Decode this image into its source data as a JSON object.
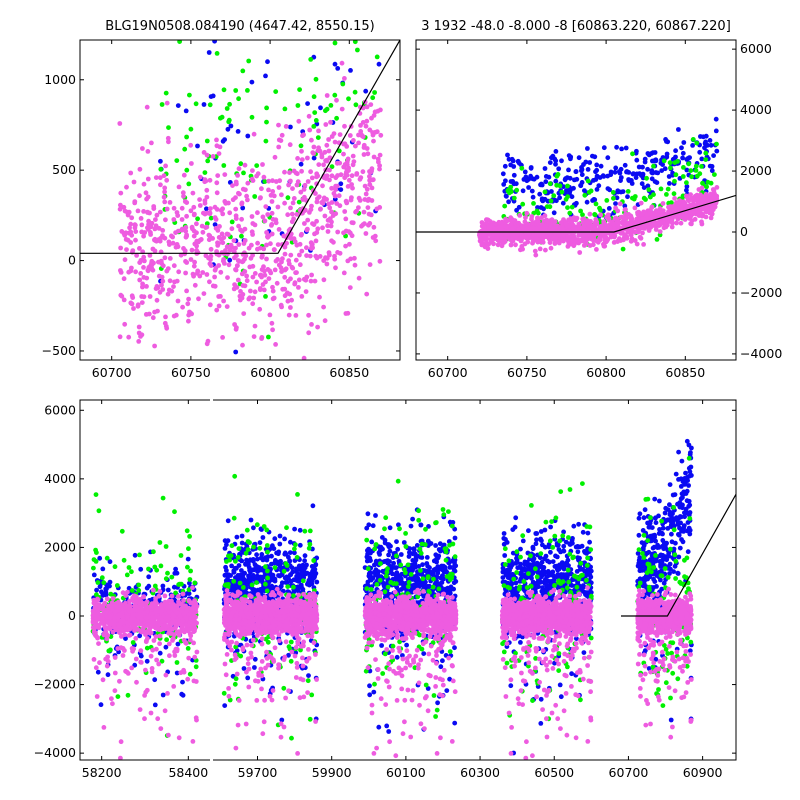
{
  "chart_data": [
    {
      "type": "scatter",
      "title": "BLG19N0508.084190 (4647.42, 8550.15)",
      "xlabel": "",
      "ylabel": "",
      "xlim": [
        60680,
        60882
      ],
      "ylim": [
        -550,
        1220
      ],
      "xticks": [
        60700,
        60750,
        60800,
        60850
      ],
      "yticks": [
        -500,
        0,
        500,
        1000
      ],
      "yaxis_side": "left",
      "grid": false,
      "series": [
        {
          "color": "#0a0af2",
          "n_points": 90,
          "x_range": [
            60730,
            60870
          ],
          "center": 700,
          "sigma": 500,
          "trend": 1.5
        },
        {
          "color": "#00f000",
          "n_points": 150,
          "x_range": [
            60730,
            60870
          ],
          "center": 600,
          "sigma": 420,
          "trend": 1.5
        },
        {
          "color": "#ee5ce0",
          "n_points": 950,
          "x_range": [
            60705,
            60870
          ],
          "center": 50,
          "sigma": 260,
          "trend": 1.0
        }
      ],
      "model_line": {
        "color": "#000000",
        "points": [
          [
            60680,
            40
          ],
          [
            60805,
            40
          ],
          [
            60882,
            1220
          ]
        ]
      }
    },
    {
      "type": "scatter",
      "title": "3 1932 -48.0 -8.000 -8 [60863.220, 60867.220]",
      "xlabel": "",
      "ylabel": "",
      "xlim": [
        60680,
        60882
      ],
      "ylim": [
        -4200,
        6300
      ],
      "xticks": [
        60700,
        60750,
        60800,
        60850
      ],
      "yticks": [
        -4000,
        -2000,
        0,
        2000,
        4000,
        6000
      ],
      "yaxis_side": "right",
      "grid": false,
      "series": [
        {
          "color": "#0a0af2",
          "n_points": 320,
          "x_range": [
            60735,
            60870
          ],
          "center": 1600,
          "sigma": 650,
          "trend": 1.0
        },
        {
          "color": "#00f000",
          "n_points": 170,
          "x_range": [
            60735,
            60870
          ],
          "center": 700,
          "sigma": 750,
          "trend": 1.0
        },
        {
          "color": "#ee5ce0",
          "n_points": 1300,
          "x_range": [
            60720,
            60870
          ],
          "center": 0,
          "sigma": 280,
          "trend": 1.0
        }
      ],
      "model_line": {
        "color": "#000000",
        "points": [
          [
            60680,
            0
          ],
          [
            60805,
            0
          ],
          [
            60882,
            1200
          ]
        ]
      }
    },
    {
      "type": "scatter",
      "title": "",
      "xlabel": "",
      "ylabel": "",
      "broken_x_axis": true,
      "segments": [
        {
          "xlim": [
            58150,
            58450
          ],
          "xticks": [
            58200,
            58400
          ]
        },
        {
          "xlim": [
            59580,
            60990
          ],
          "xticks": [
            59700,
            59900,
            60100,
            60300,
            60500,
            60700,
            60900
          ]
        }
      ],
      "ylim": [
        -4200,
        6300
      ],
      "yticks": [
        -4000,
        -2000,
        0,
        2000,
        4000,
        6000
      ],
      "yaxis_side": "left",
      "grid": false,
      "seasons": [
        {
          "x_range": [
            58180,
            58420
          ],
          "blue_center": 200,
          "blue_sigma": 600,
          "n_blue": 250,
          "n_green": 120,
          "n_pink": 900
        },
        {
          "x_range": [
            59610,
            59860
          ],
          "blue_center": 900,
          "blue_sigma": 700,
          "n_blue": 650,
          "n_green": 150,
          "n_pink": 1100
        },
        {
          "x_range": [
            59990,
            60235
          ],
          "blue_center": 900,
          "blue_sigma": 700,
          "n_blue": 650,
          "n_green": 150,
          "n_pink": 1100
        },
        {
          "x_range": [
            60360,
            60600
          ],
          "blue_center": 900,
          "blue_sigma": 700,
          "n_blue": 650,
          "n_green": 150,
          "n_pink": 1100
        },
        {
          "x_range": [
            60725,
            60870
          ],
          "blue_center": 1500,
          "blue_sigma": 800,
          "n_blue": 350,
          "n_green": 110,
          "n_pink": 700
        }
      ],
      "colors": {
        "blue": "#0a0af2",
        "green": "#00f000",
        "pink": "#ee5ce0"
      },
      "model_line": {
        "color": "#000000",
        "points": [
          [
            60680,
            0
          ],
          [
            60805,
            0
          ],
          [
            60990,
            3550
          ]
        ]
      }
    }
  ]
}
